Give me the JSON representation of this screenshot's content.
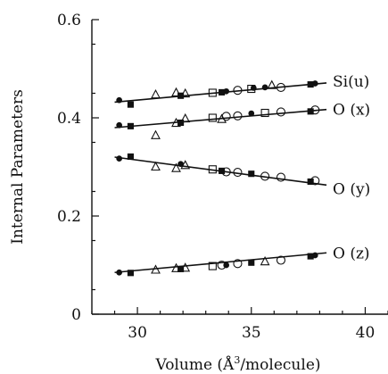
{
  "chart_data": {
    "type": "scatter",
    "xlabel": "Volume (Å³/molecule)",
    "xlabel_parts": {
      "prefix": "Volume (Å",
      "sup": "3",
      "suffix": "/molecule)"
    },
    "ylabel": "Internal Parameters",
    "xlim": [
      28,
      41
    ],
    "ylim": [
      0,
      0.6
    ],
    "xticks": [
      30,
      35,
      40
    ],
    "yticks": [
      0,
      0.2,
      0.4,
      0.6
    ],
    "ytick_labels": [
      "0",
      "0.2",
      "0.4",
      "0.6"
    ],
    "marker_types": [
      "filled-circle",
      "filled-square",
      "open-triangle",
      "open-square",
      "open-circle"
    ],
    "series": [
      {
        "name": "Si(u)",
        "fit": [
          [
            29.0,
            0.432
          ],
          [
            38.3,
            0.471
          ]
        ],
        "points": [
          [
            29.2,
            0.436,
            "filled-circle"
          ],
          [
            29.7,
            0.427,
            "filled-square"
          ],
          [
            30.8,
            0.447,
            "open-triangle"
          ],
          [
            31.7,
            0.451,
            "open-triangle"
          ],
          [
            32.1,
            0.449,
            "open-triangle"
          ],
          [
            31.9,
            0.445,
            "filled-square"
          ],
          [
            33.3,
            0.451,
            "open-square"
          ],
          [
            33.7,
            0.452,
            "filled-square"
          ],
          [
            33.9,
            0.454,
            "filled-circle"
          ],
          [
            34.4,
            0.456,
            "open-circle"
          ],
          [
            35.0,
            0.459,
            "open-square"
          ],
          [
            35.1,
            0.461,
            "filled-circle"
          ],
          [
            35.6,
            0.462,
            "filled-circle"
          ],
          [
            35.9,
            0.466,
            "open-triangle"
          ],
          [
            36.3,
            0.462,
            "open-circle"
          ],
          [
            37.6,
            0.468,
            "filled-square"
          ],
          [
            37.8,
            0.47,
            "filled-circle"
          ]
        ]
      },
      {
        "name": "O (x)",
        "fit": [
          [
            29.0,
            0.38
          ],
          [
            38.3,
            0.417
          ]
        ],
        "points": [
          [
            29.2,
            0.385,
            "filled-circle"
          ],
          [
            29.7,
            0.383,
            "filled-square"
          ],
          [
            30.8,
            0.364,
            "open-triangle"
          ],
          [
            31.7,
            0.389,
            "open-triangle"
          ],
          [
            31.9,
            0.39,
            "filled-square"
          ],
          [
            32.1,
            0.398,
            "open-triangle"
          ],
          [
            33.3,
            0.4,
            "open-square"
          ],
          [
            33.7,
            0.397,
            "open-triangle"
          ],
          [
            33.9,
            0.403,
            "open-circle"
          ],
          [
            34.4,
            0.404,
            "open-circle"
          ],
          [
            35.0,
            0.409,
            "filled-circle"
          ],
          [
            35.6,
            0.41,
            "open-square"
          ],
          [
            36.3,
            0.412,
            "open-circle"
          ],
          [
            37.6,
            0.413,
            "filled-square"
          ],
          [
            37.8,
            0.416,
            "open-circle"
          ]
        ]
      },
      {
        "name": "O (y)",
        "fit": [
          [
            29.0,
            0.32
          ],
          [
            38.3,
            0.263
          ]
        ],
        "points": [
          [
            29.2,
            0.317,
            "filled-circle"
          ],
          [
            29.7,
            0.321,
            "filled-square"
          ],
          [
            30.8,
            0.3,
            "open-triangle"
          ],
          [
            31.7,
            0.297,
            "open-triangle"
          ],
          [
            31.9,
            0.306,
            "filled-circle"
          ],
          [
            32.1,
            0.303,
            "open-triangle"
          ],
          [
            33.3,
            0.295,
            "open-square"
          ],
          [
            33.7,
            0.292,
            "filled-square"
          ],
          [
            33.9,
            0.29,
            "open-circle"
          ],
          [
            34.4,
            0.289,
            "open-circle"
          ],
          [
            35.0,
            0.286,
            "filled-square"
          ],
          [
            35.6,
            0.281,
            "open-circle"
          ],
          [
            36.3,
            0.279,
            "open-circle"
          ],
          [
            37.6,
            0.27,
            "filled-square"
          ],
          [
            37.8,
            0.272,
            "open-circle"
          ]
        ]
      },
      {
        "name": "O (z)",
        "fit": [
          [
            29.0,
            0.085
          ],
          [
            38.3,
            0.125
          ]
        ],
        "points": [
          [
            29.2,
            0.085,
            "filled-circle"
          ],
          [
            29.7,
            0.084,
            "filled-square"
          ],
          [
            30.8,
            0.09,
            "open-triangle"
          ],
          [
            31.7,
            0.093,
            "open-triangle"
          ],
          [
            31.9,
            0.092,
            "filled-square"
          ],
          [
            32.1,
            0.094,
            "open-triangle"
          ],
          [
            33.3,
            0.098,
            "open-square"
          ],
          [
            33.7,
            0.1,
            "open-circle"
          ],
          [
            33.9,
            0.1,
            "filled-circle"
          ],
          [
            34.4,
            0.103,
            "open-circle"
          ],
          [
            35.0,
            0.105,
            "filled-square"
          ],
          [
            35.6,
            0.107,
            "open-triangle"
          ],
          [
            36.3,
            0.11,
            "open-circle"
          ],
          [
            37.6,
            0.118,
            "filled-square"
          ],
          [
            37.8,
            0.12,
            "filled-circle"
          ]
        ]
      }
    ]
  }
}
